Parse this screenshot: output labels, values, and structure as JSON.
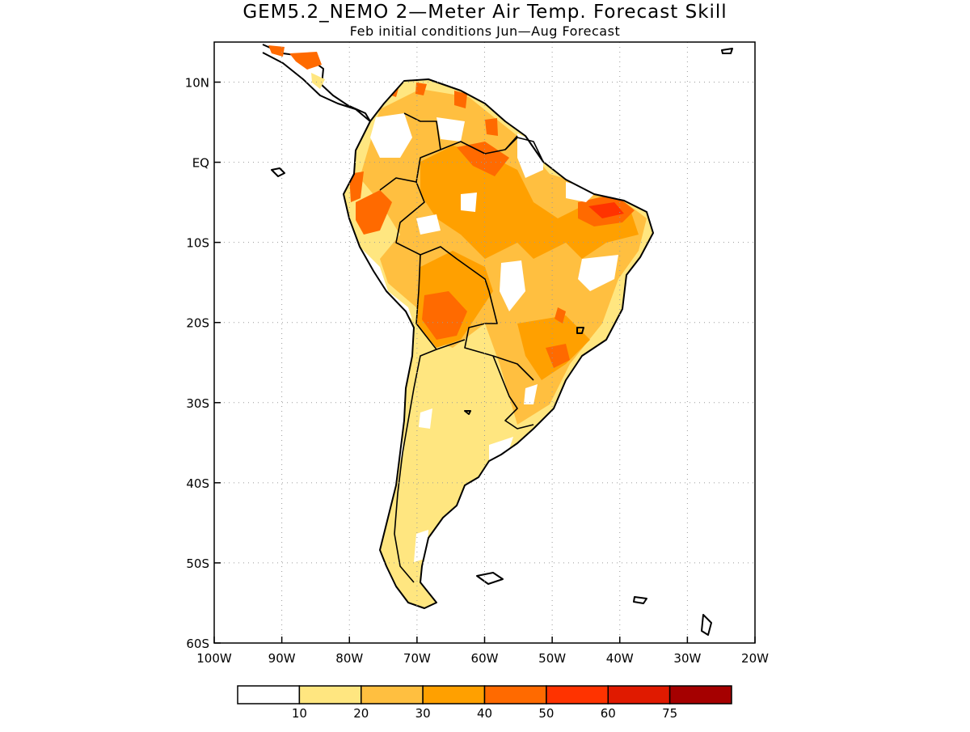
{
  "title": "GEM5.2_NEMO 2—Meter Air Temp. Forecast Skill",
  "subtitle": "Feb initial conditions  Jun—Aug Forecast",
  "map": {
    "lon_range": [
      -100,
      -20
    ],
    "lat_range": [
      -60,
      15
    ],
    "lon_ticks": [
      {
        "value": -100,
        "label": "100W"
      },
      {
        "value": -90,
        "label": "90W"
      },
      {
        "value": -80,
        "label": "80W"
      },
      {
        "value": -70,
        "label": "70W"
      },
      {
        "value": -60,
        "label": "60W"
      },
      {
        "value": -50,
        "label": "50W"
      },
      {
        "value": -40,
        "label": "40W"
      },
      {
        "value": -30,
        "label": "30W"
      },
      {
        "value": -20,
        "label": "20W"
      }
    ],
    "lat_ticks": [
      {
        "value": 10,
        "label": "10N"
      },
      {
        "value": 0,
        "label": "EQ"
      },
      {
        "value": -10,
        "label": "10S"
      },
      {
        "value": -20,
        "label": "20S"
      },
      {
        "value": -30,
        "label": "30S"
      },
      {
        "value": -40,
        "label": "40S"
      },
      {
        "value": -50,
        "label": "50S"
      },
      {
        "value": -60,
        "label": "60S"
      }
    ],
    "grid": "dotted"
  },
  "colorbar": {
    "colors": [
      "#ffffff",
      "#ffe680",
      "#ffbf40",
      "#ffa000",
      "#ff6a00",
      "#ff3300",
      "#e01a00",
      "#a50000"
    ],
    "labels": [
      "10",
      "20",
      "30",
      "40",
      "50",
      "60",
      "75"
    ]
  }
}
